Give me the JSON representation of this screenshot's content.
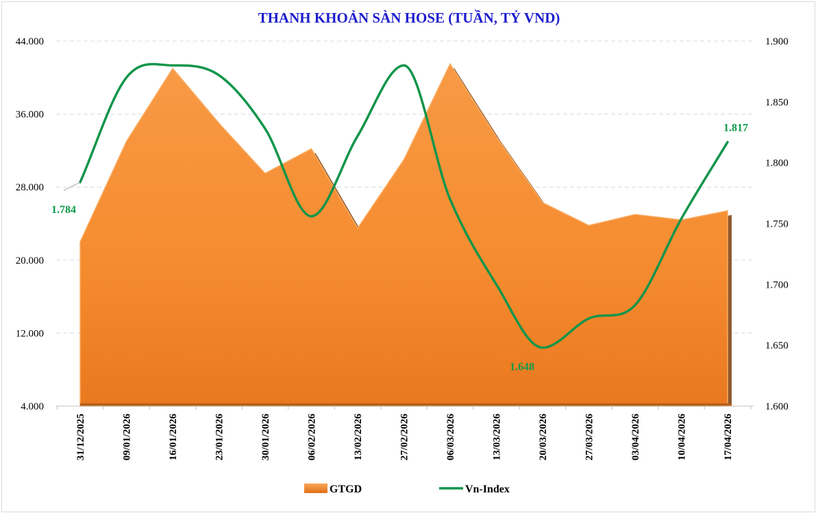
{
  "chart_data": {
    "type": "area",
    "title": "THANH KHOẢN SÀN HOSE (TUẦN, TỶ VND)",
    "categories": [
      "31/12/2025",
      "09/01/2026",
      "16/01/2026",
      "23/01/2026",
      "30/01/2026",
      "06/02/2026",
      "13/02/2026",
      "27/02/2026",
      "06/03/2026",
      "13/03/2026",
      "20/03/2026",
      "27/03/2026",
      "03/04/2026",
      "10/04/2026",
      "17/04/2026"
    ],
    "series": [
      {
        "name": "GTGD",
        "axis": "left",
        "type": "area",
        "color": "#f58b2f",
        "values": [
          22000,
          33000,
          41000,
          35000,
          29500,
          32200,
          23500,
          31000,
          41500,
          33500,
          26300,
          23800,
          25000,
          24400,
          25400
        ]
      },
      {
        "name": "Vn-Index",
        "axis": "right",
        "type": "line",
        "color": "#13954a",
        "values": [
          1784,
          1870,
          1880,
          1872,
          1828,
          1756,
          1822,
          1880,
          1770,
          1700,
          1648,
          1672,
          1683,
          1754,
          1817
        ]
      }
    ],
    "y_left": {
      "min": 4000,
      "max": 44000,
      "ticks": [
        "4.000",
        "12.000",
        "20.000",
        "28.000",
        "36.000",
        "44.000"
      ]
    },
    "y_right": {
      "min": 1600,
      "max": 1900,
      "ticks": [
        "1.600",
        "1.650",
        "1.700",
        "1.750",
        "1.800",
        "1.850",
        "1.900"
      ]
    },
    "grid": true,
    "legend_position": "bottom",
    "data_labels": [
      {
        "series": "Vn-Index",
        "index": 0,
        "text": "1.784"
      },
      {
        "series": "Vn-Index",
        "index": 10,
        "text": "1.648"
      },
      {
        "series": "Vn-Index",
        "index": 14,
        "text": "1.817"
      }
    ]
  }
}
